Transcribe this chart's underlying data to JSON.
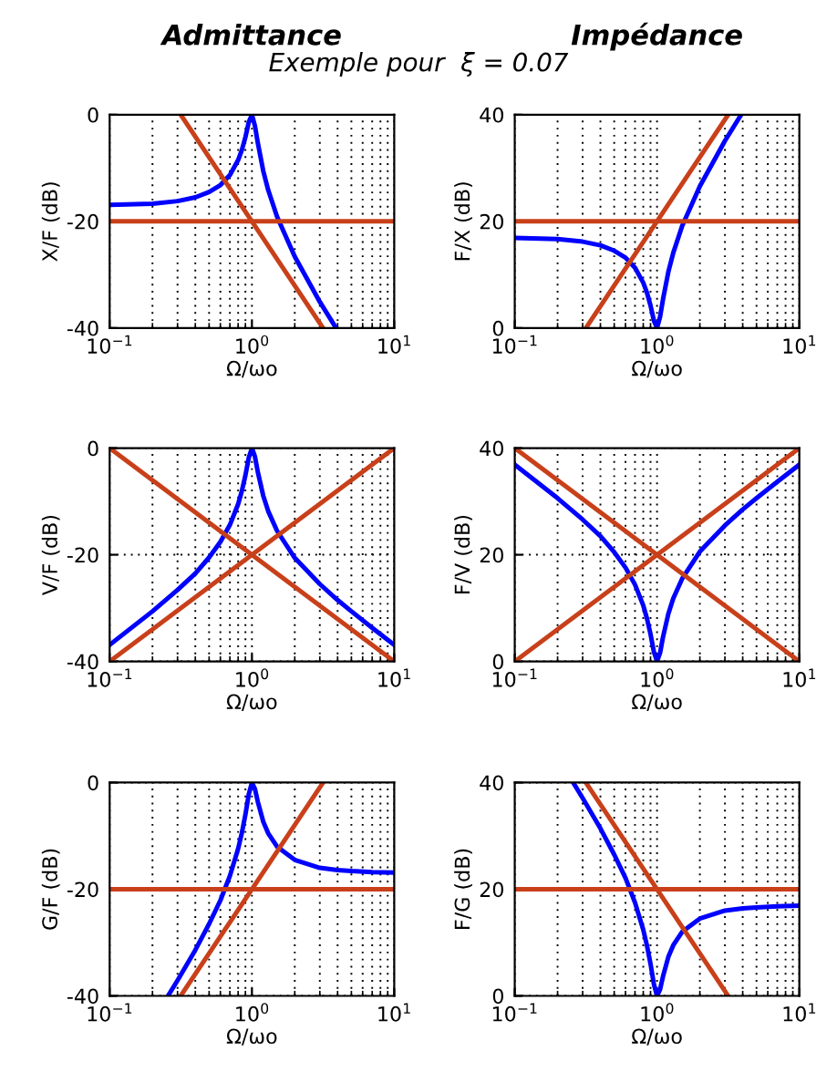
{
  "chart_data": [
    {
      "type": "line",
      "title": "Admittance",
      "subtitle": "Exemple pour  ξ = 0.07",
      "xlabel": "Ω/ωo",
      "ylabel": "X/F (dB)",
      "log": "x",
      "grid": true,
      "xlim": [
        0.1,
        10
      ],
      "ylim": [
        -40,
        0
      ],
      "xticks": [
        {
          "value": 0.1,
          "label": "10$^{−1}$"
        },
        {
          "value": 1,
          "label": "10$^{0}$"
        },
        {
          "value": 10,
          "label": "10$^{1}$"
        }
      ],
      "yticks": [
        -40,
        -20,
        0
      ],
      "series": [
        {
          "color": "#0000ff",
          "x": [
            0.1,
            0.2,
            0.3,
            0.4,
            0.5,
            0.6,
            0.7,
            0.8,
            0.85,
            0.9,
            0.95,
            1,
            1.05,
            1.1,
            1.2,
            1.3,
            1.5,
            2,
            3,
            3.9
          ],
          "values": [
            -16.9,
            -16.7,
            -16.2,
            -15.5,
            -14.5,
            -13.2,
            -11.3,
            -8.5,
            -6.6,
            -4.2,
            -1.4,
            0,
            -2.1,
            -5.3,
            -10.5,
            -14.1,
            -19.1,
            -26.6,
            -35.1,
            -40
          ]
        },
        {
          "color": "#c8401a",
          "x": [
            0.316,
            3.16
          ],
          "values": [
            0,
            -40
          ]
        },
        {
          "color": "#c8401a",
          "x": [
            0.1,
            10
          ],
          "values": [
            -20,
            -20
          ]
        }
      ]
    },
    {
      "type": "line",
      "title": "Impédance",
      "xlabel": "Ω/ωo",
      "ylabel": "F/X (dB)",
      "log": "x",
      "grid": true,
      "xlim": [
        0.1,
        10
      ],
      "ylim": [
        0,
        40
      ],
      "xticks": [
        {
          "value": 0.1,
          "label": "10$^{−1}$"
        },
        {
          "value": 1,
          "label": "10$^{0}$"
        },
        {
          "value": 10,
          "label": "10$^{1}$"
        }
      ],
      "yticks": [
        0,
        20,
        40
      ],
      "series": [
        {
          "color": "#0000ff",
          "x": [
            0.1,
            0.2,
            0.3,
            0.4,
            0.5,
            0.6,
            0.7,
            0.8,
            0.85,
            0.9,
            0.95,
            1,
            1.05,
            1.1,
            1.2,
            1.3,
            1.5,
            2,
            3,
            3.9
          ],
          "values": [
            16.9,
            16.7,
            16.2,
            15.5,
            14.5,
            13.2,
            11.3,
            8.5,
            6.6,
            4.2,
            1.4,
            0,
            2.1,
            5.3,
            10.5,
            14.1,
            19.1,
            26.6,
            35.1,
            40
          ]
        },
        {
          "color": "#c8401a",
          "x": [
            0.316,
            3.16
          ],
          "values": [
            0,
            40
          ]
        },
        {
          "color": "#c8401a",
          "x": [
            0.1,
            10
          ],
          "values": [
            20,
            20
          ]
        }
      ]
    },
    {
      "type": "line",
      "xlabel": "Ω/ωo",
      "ylabel": "V/F (dB)",
      "log": "x",
      "grid": true,
      "xlim": [
        0.1,
        10
      ],
      "ylim": [
        -40,
        0
      ],
      "xticks": [
        {
          "value": 0.1,
          "label": "10$^{−1}$"
        },
        {
          "value": 1,
          "label": "10$^{0}$"
        },
        {
          "value": 10,
          "label": "10$^{1}$"
        }
      ],
      "yticks": [
        -40,
        -20,
        0
      ],
      "series": [
        {
          "color": "#0000ff",
          "x": [
            0.1,
            0.2,
            0.3,
            0.4,
            0.5,
            0.6,
            0.7,
            0.8,
            0.85,
            0.9,
            0.95,
            1,
            1.05,
            1.1,
            1.2,
            1.3,
            1.5,
            2,
            3,
            4,
            5,
            7,
            10
          ],
          "values": [
            -36.9,
            -30.6,
            -26.6,
            -23.5,
            -20.5,
            -17.6,
            -14.4,
            -10.5,
            -8,
            -5.1,
            -1.8,
            0,
            -1.6,
            -4.5,
            -8.9,
            -11.8,
            -15.5,
            -20.6,
            -25.5,
            -28.5,
            -30.6,
            -33.7,
            -36.9
          ]
        },
        {
          "color": "#c8401a",
          "x": [
            0.1,
            10
          ],
          "values": [
            0,
            -40
          ]
        },
        {
          "color": "#c8401a",
          "x": [
            0.1,
            10
          ],
          "values": [
            -40,
            0
          ]
        }
      ]
    },
    {
      "type": "line",
      "xlabel": "Ω/ωo",
      "ylabel": "F/V (dB)",
      "log": "x",
      "grid": true,
      "xlim": [
        0.1,
        10
      ],
      "ylim": [
        0,
        40
      ],
      "xticks": [
        {
          "value": 0.1,
          "label": "10$^{−1}$"
        },
        {
          "value": 1,
          "label": "10$^{0}$"
        },
        {
          "value": 10,
          "label": "10$^{1}$"
        }
      ],
      "yticks": [
        0,
        20,
        40
      ],
      "series": [
        {
          "color": "#0000ff",
          "x": [
            0.1,
            0.2,
            0.3,
            0.4,
            0.5,
            0.6,
            0.7,
            0.8,
            0.85,
            0.9,
            0.95,
            1,
            1.05,
            1.1,
            1.2,
            1.3,
            1.5,
            2,
            3,
            4,
            5,
            7,
            10
          ],
          "values": [
            36.9,
            30.6,
            26.6,
            23.5,
            20.5,
            17.6,
            14.4,
            10.5,
            8,
            5.1,
            1.8,
            0,
            1.6,
            4.5,
            8.9,
            11.8,
            15.5,
            20.6,
            25.5,
            28.5,
            30.6,
            33.7,
            36.9
          ]
        },
        {
          "color": "#c8401a",
          "x": [
            0.1,
            10
          ],
          "values": [
            40,
            0
          ]
        },
        {
          "color": "#c8401a",
          "x": [
            0.1,
            10
          ],
          "values": [
            0,
            40
          ]
        }
      ]
    },
    {
      "type": "line",
      "xlabel": "Ω/ωo",
      "ylabel": "G/F (dB)",
      "log": "x",
      "grid": true,
      "xlim": [
        0.1,
        10
      ],
      "ylim": [
        -40,
        0
      ],
      "xticks": [
        {
          "value": 0.1,
          "label": "10$^{−1}$"
        },
        {
          "value": 1,
          "label": "10$^{0}$"
        },
        {
          "value": 10,
          "label": "10$^{1}$"
        }
      ],
      "yticks": [
        -40,
        -20,
        0
      ],
      "series": [
        {
          "color": "#0000ff",
          "x": [
            0.26,
            0.3,
            0.4,
            0.5,
            0.6,
            0.7,
            0.8,
            0.85,
            0.9,
            0.95,
            1,
            1.05,
            1.1,
            1.2,
            1.3,
            1.5,
            2,
            3,
            4,
            5,
            7,
            10
          ],
          "values": [
            -39.8,
            -37.1,
            -31.4,
            -26.5,
            -22.1,
            -17.5,
            -12.4,
            -9.4,
            -6,
            -2.2,
            0,
            -1.2,
            -3.6,
            -7.3,
            -9.5,
            -12,
            -14.5,
            -16,
            -16.4,
            -16.6,
            -16.8,
            -16.9
          ]
        },
        {
          "color": "#c8401a",
          "x": [
            0.316,
            3.16
          ],
          "values": [
            -40,
            0
          ]
        },
        {
          "color": "#c8401a",
          "x": [
            0.1,
            10
          ],
          "values": [
            -20,
            -20
          ]
        }
      ]
    },
    {
      "type": "line",
      "xlabel": "Ω/ωo",
      "ylabel": "F/G (dB)",
      "log": "x",
      "grid": true,
      "xlim": [
        0.1,
        10
      ],
      "ylim": [
        0,
        40
      ],
      "xticks": [
        {
          "value": 0.1,
          "label": "10$^{−1}$"
        },
        {
          "value": 1,
          "label": "10$^{0}$"
        },
        {
          "value": 10,
          "label": "10$^{1}$"
        }
      ],
      "yticks": [
        0,
        20,
        40
      ],
      "series": [
        {
          "color": "#0000ff",
          "x": [
            0.26,
            0.3,
            0.4,
            0.5,
            0.6,
            0.7,
            0.8,
            0.85,
            0.9,
            0.95,
            1,
            1.05,
            1.1,
            1.2,
            1.3,
            1.5,
            2,
            3,
            4,
            5,
            7,
            10
          ],
          "values": [
            39.8,
            37.1,
            31.4,
            26.5,
            22.1,
            17.5,
            12.4,
            9.4,
            6,
            2.2,
            0,
            1.2,
            3.6,
            7.3,
            9.5,
            12,
            14.5,
            16,
            16.4,
            16.6,
            16.8,
            16.9
          ]
        },
        {
          "color": "#c8401a",
          "x": [
            0.316,
            3.16
          ],
          "values": [
            40,
            0
          ]
        },
        {
          "color": "#c8401a",
          "x": [
            0.1,
            10
          ],
          "values": [
            20,
            20
          ]
        }
      ]
    }
  ]
}
